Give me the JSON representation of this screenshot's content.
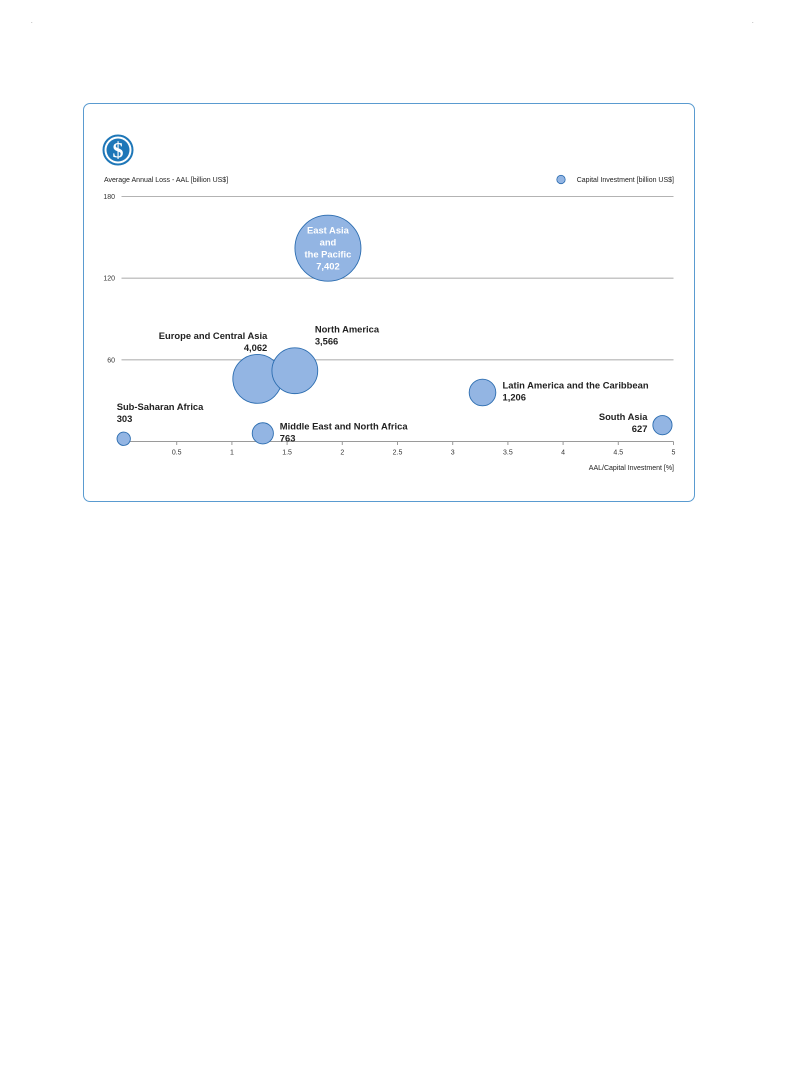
{
  "chart_data": {
    "type": "scatter",
    "title": "",
    "ylabel": "Average Annual Loss - AAL [billion US$]",
    "xlabel": "AAL/Capital Investment [%]",
    "legend": {
      "label": "Capital  Investment [billion US$]",
      "position": "top-right"
    },
    "xlim": [
      0,
      5
    ],
    "ylim": [
      0,
      180
    ],
    "x_ticks": [
      "0.5",
      "1",
      "1.5",
      "2",
      "2.5",
      "3",
      "3.5",
      "4",
      "4.5",
      "5"
    ],
    "y_ticks": [
      "60",
      "120",
      "180"
    ],
    "grid": "horizontal",
    "colors": {
      "bubble_fill": "#93b5e3",
      "bubble_stroke": "#2c6db0",
      "grid": "#b3b3b3",
      "frame": "#5a9bd0",
      "icon": "#1e77b8"
    },
    "icon": "dollar-icon",
    "points": [
      {
        "name": "Sub-Saharan Africa",
        "label": "303",
        "x": 0.02,
        "y": 2,
        "size": 303
      },
      {
        "name": "Middle East and North Africa",
        "label": "763",
        "x": 1.28,
        "y": 6,
        "size": 763
      },
      {
        "name": "Europe and Central Asia",
        "label": "4,062",
        "x": 1.23,
        "y": 46,
        "size": 4062
      },
      {
        "name": "North America",
        "label": "3,566",
        "x": 1.57,
        "y": 52,
        "size": 3566
      },
      {
        "name": "East Asia and the Pacific",
        "label_lines": [
          "East Asia",
          "and",
          "the Pacific",
          "7,402"
        ],
        "x": 1.87,
        "y": 142,
        "size": 7402
      },
      {
        "name": "Latin America and the Caribbean",
        "label": "1,206",
        "x": 3.27,
        "y": 36,
        "size": 1206
      },
      {
        "name": "South Asia",
        "label": "627",
        "x": 4.9,
        "y": 12,
        "size": 627
      }
    ]
  }
}
